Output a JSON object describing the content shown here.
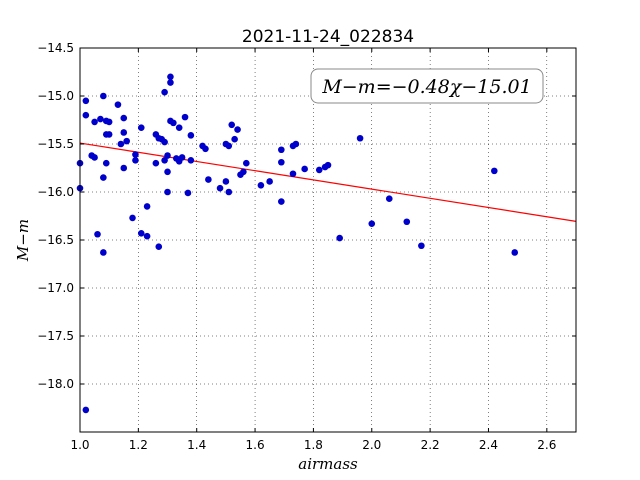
{
  "chart_data": {
    "type": "scatter",
    "title": "2021-11-24_022834",
    "xlabel": "airmass",
    "ylabel": "M−m",
    "xlim": [
      1.0,
      2.7
    ],
    "ylim": [
      -14.5,
      -18.5
    ],
    "y_inverted": true,
    "grid": true,
    "xticks": [
      1.0,
      1.2,
      1.4,
      1.6,
      1.8,
      2.0,
      2.2,
      2.4,
      2.6
    ],
    "xtick_labels": [
      "1.0",
      "1.2",
      "1.4",
      "1.6",
      "1.8",
      "2.0",
      "2.2",
      "2.4",
      "2.6"
    ],
    "yticks": [
      -14.5,
      -15.0,
      -15.5,
      -16.0,
      -16.5,
      -17.0,
      -17.5,
      -18.0
    ],
    "ytick_labels": [
      "−14.5",
      "−15.0",
      "−15.5",
      "−16.0",
      "−16.5",
      "−17.0",
      "−17.5",
      "−18.0"
    ],
    "point_color": "#0000cc",
    "fit_color": "#ff0000",
    "annotation": "M−m=−0.48χ−15.01",
    "annotation_placement": "top-right",
    "fit": {
      "slope": -0.48,
      "intercept": -15.01
    },
    "points": [
      {
        "x": 1.0,
        "y": -15.7
      },
      {
        "x": 1.0,
        "y": -15.96
      },
      {
        "x": 1.02,
        "y": -15.05
      },
      {
        "x": 1.02,
        "y": -15.2
      },
      {
        "x": 1.02,
        "y": -18.27
      },
      {
        "x": 1.04,
        "y": -15.62
      },
      {
        "x": 1.05,
        "y": -15.27
      },
      {
        "x": 1.05,
        "y": -15.64
      },
      {
        "x": 1.06,
        "y": -16.44
      },
      {
        "x": 1.07,
        "y": -15.24
      },
      {
        "x": 1.08,
        "y": -15.0
      },
      {
        "x": 1.08,
        "y": -15.85
      },
      {
        "x": 1.08,
        "y": -16.63
      },
      {
        "x": 1.09,
        "y": -15.26
      },
      {
        "x": 1.09,
        "y": -15.4
      },
      {
        "x": 1.09,
        "y": -15.7
      },
      {
        "x": 1.1,
        "y": -15.27
      },
      {
        "x": 1.1,
        "y": -15.4
      },
      {
        "x": 1.13,
        "y": -15.09
      },
      {
        "x": 1.14,
        "y": -15.5
      },
      {
        "x": 1.15,
        "y": -15.23
      },
      {
        "x": 1.15,
        "y": -15.38
      },
      {
        "x": 1.15,
        "y": -15.75
      },
      {
        "x": 1.16,
        "y": -15.47
      },
      {
        "x": 1.18,
        "y": -16.27
      },
      {
        "x": 1.19,
        "y": -15.61
      },
      {
        "x": 1.19,
        "y": -15.67
      },
      {
        "x": 1.21,
        "y": -15.33
      },
      {
        "x": 1.21,
        "y": -16.43
      },
      {
        "x": 1.23,
        "y": -16.15
      },
      {
        "x": 1.23,
        "y": -16.46
      },
      {
        "x": 1.26,
        "y": -15.4
      },
      {
        "x": 1.26,
        "y": -15.7
      },
      {
        "x": 1.27,
        "y": -15.44
      },
      {
        "x": 1.27,
        "y": -16.57
      },
      {
        "x": 1.28,
        "y": -15.45
      },
      {
        "x": 1.29,
        "y": -14.96
      },
      {
        "x": 1.29,
        "y": -15.48
      },
      {
        "x": 1.29,
        "y": -15.67
      },
      {
        "x": 1.3,
        "y": -15.62
      },
      {
        "x": 1.3,
        "y": -15.79
      },
      {
        "x": 1.3,
        "y": -16.0
      },
      {
        "x": 1.31,
        "y": -14.8
      },
      {
        "x": 1.31,
        "y": -14.86
      },
      {
        "x": 1.31,
        "y": -15.26
      },
      {
        "x": 1.32,
        "y": -15.28
      },
      {
        "x": 1.33,
        "y": -15.65
      },
      {
        "x": 1.34,
        "y": -15.33
      },
      {
        "x": 1.34,
        "y": -15.68
      },
      {
        "x": 1.35,
        "y": -15.64
      },
      {
        "x": 1.36,
        "y": -15.22
      },
      {
        "x": 1.37,
        "y": -16.01
      },
      {
        "x": 1.38,
        "y": -15.41
      },
      {
        "x": 1.38,
        "y": -15.67
      },
      {
        "x": 1.42,
        "y": -15.52
      },
      {
        "x": 1.43,
        "y": -15.55
      },
      {
        "x": 1.44,
        "y": -15.87
      },
      {
        "x": 1.48,
        "y": -15.96
      },
      {
        "x": 1.5,
        "y": -15.5
      },
      {
        "x": 1.5,
        "y": -15.89
      },
      {
        "x": 1.51,
        "y": -15.52
      },
      {
        "x": 1.51,
        "y": -16.0
      },
      {
        "x": 1.52,
        "y": -15.3
      },
      {
        "x": 1.53,
        "y": -15.45
      },
      {
        "x": 1.54,
        "y": -15.35
      },
      {
        "x": 1.55,
        "y": -15.82
      },
      {
        "x": 1.56,
        "y": -15.79
      },
      {
        "x": 1.57,
        "y": -15.7
      },
      {
        "x": 1.62,
        "y": -15.93
      },
      {
        "x": 1.65,
        "y": -15.89
      },
      {
        "x": 1.69,
        "y": -15.56
      },
      {
        "x": 1.69,
        "y": -15.69
      },
      {
        "x": 1.69,
        "y": -16.1
      },
      {
        "x": 1.73,
        "y": -15.52
      },
      {
        "x": 1.73,
        "y": -15.81
      },
      {
        "x": 1.74,
        "y": -15.5
      },
      {
        "x": 1.77,
        "y": -15.76
      },
      {
        "x": 1.82,
        "y": -15.77
      },
      {
        "x": 1.84,
        "y": -15.74
      },
      {
        "x": 1.85,
        "y": -15.72
      },
      {
        "x": 1.89,
        "y": -16.48
      },
      {
        "x": 1.96,
        "y": -15.44
      },
      {
        "x": 2.0,
        "y": -16.33
      },
      {
        "x": 2.06,
        "y": -16.07
      },
      {
        "x": 2.12,
        "y": -16.31
      },
      {
        "x": 2.17,
        "y": -16.56
      },
      {
        "x": 2.42,
        "y": -15.78
      },
      {
        "x": 2.49,
        "y": -16.63
      }
    ]
  }
}
